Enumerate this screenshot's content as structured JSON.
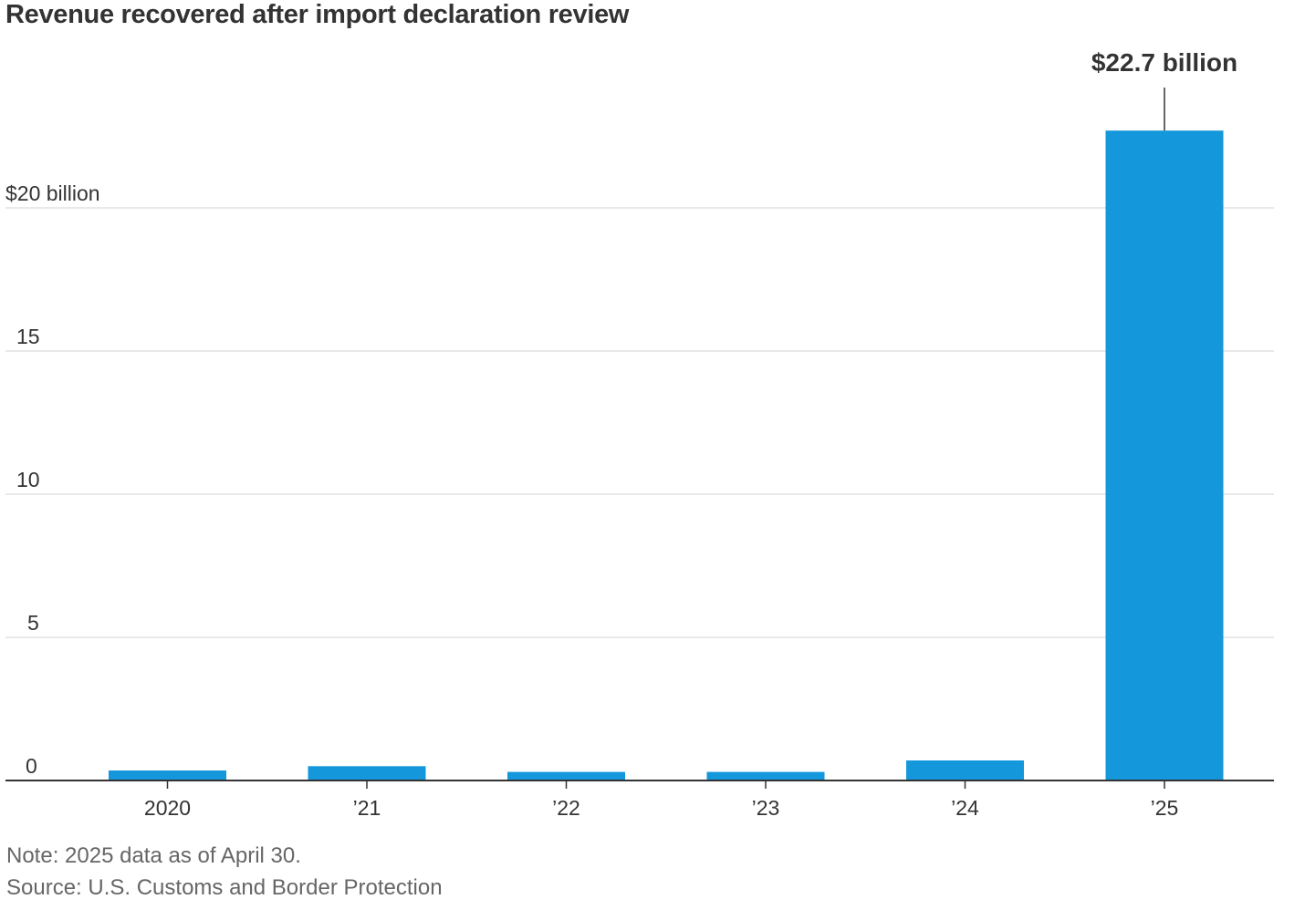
{
  "chart_data": {
    "type": "bar",
    "title": "Revenue recovered after import declaration review",
    "categories": [
      "2020",
      "’21",
      "’22",
      "’23",
      "’24",
      "’25"
    ],
    "series": [
      {
        "name": "Revenue recovered",
        "values": [
          0.35,
          0.5,
          0.3,
          0.3,
          0.7,
          22.7
        ],
        "color": "#1497db"
      }
    ],
    "y_ticks": [
      {
        "value": 0,
        "label": "0"
      },
      {
        "value": 5,
        "label": "5"
      },
      {
        "value": 10,
        "label": "10"
      },
      {
        "value": 15,
        "label": "15"
      },
      {
        "value": 20,
        "label": "$20 billion"
      }
    ],
    "ylim": [
      0,
      25
    ],
    "xlabel": "",
    "ylabel": "",
    "grid": true,
    "annotation": {
      "category_index": 5,
      "text": "$22.7 billion"
    },
    "gridline_color": "#e2e2e2",
    "baseline_color": "#333333"
  },
  "footer": {
    "note": "Note: 2025 data as of April 30.",
    "source": "Source: U.S. Customs and Border Protection"
  }
}
